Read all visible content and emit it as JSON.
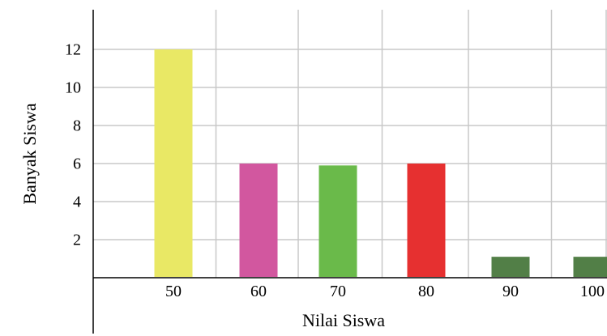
{
  "chart_data": {
    "type": "bar",
    "categories": [
      "50",
      "60",
      "70",
      "80",
      "90",
      "100"
    ],
    "values": [
      12,
      6,
      5.9,
      6,
      1.1,
      1.1
    ],
    "colors": [
      "#e9e865",
      "#d2579f",
      "#6aba4a",
      "#e63030",
      "#527f47",
      "#527f47"
    ],
    "xlabel": "Nilai Siswa",
    "ylabel": "Banyak Siswa",
    "yticks": [
      2,
      4,
      6,
      8,
      10,
      12
    ],
    "ylim": [
      0,
      14.5
    ],
    "grid": true
  }
}
